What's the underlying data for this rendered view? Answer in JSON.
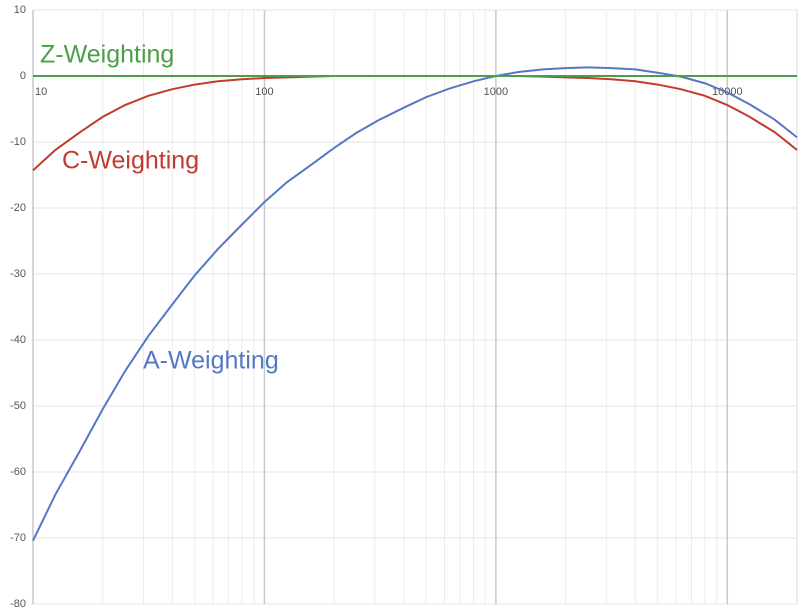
{
  "chart_data": {
    "type": "line",
    "x": [
      10,
      12.5,
      16,
      20,
      25,
      31.5,
      40,
      50,
      63,
      80,
      100,
      125,
      160,
      200,
      250,
      315,
      400,
      500,
      630,
      800,
      1000,
      1250,
      1600,
      2000,
      2500,
      3150,
      4000,
      5000,
      6300,
      8000,
      10000,
      12500,
      16000,
      20000
    ],
    "series": [
      {
        "name": "A-Weighting",
        "color": "#5577c4",
        "values": [
          -70.4,
          -63.4,
          -56.7,
          -50.5,
          -44.7,
          -39.4,
          -34.6,
          -30.2,
          -26.2,
          -22.5,
          -19.1,
          -16.1,
          -13.4,
          -10.9,
          -8.6,
          -6.6,
          -4.8,
          -3.2,
          -1.9,
          -0.8,
          0,
          0.6,
          1.0,
          1.2,
          1.3,
          1.2,
          1.0,
          0.5,
          -0.1,
          -1.1,
          -2.5,
          -4.3,
          -6.6,
          -9.3
        ]
      },
      {
        "name": "C-Weighting",
        "color": "#c23b2e",
        "values": [
          -14.3,
          -11.2,
          -8.5,
          -6.2,
          -4.4,
          -3.0,
          -2.0,
          -1.3,
          -0.8,
          -0.5,
          -0.3,
          -0.2,
          -0.1,
          0,
          0,
          0,
          0,
          0,
          0,
          0,
          0,
          0,
          -0.1,
          -0.2,
          -0.3,
          -0.5,
          -0.8,
          -1.3,
          -2.0,
          -3.0,
          -4.4,
          -6.2,
          -8.5,
          -11.2
        ]
      },
      {
        "name": "Z-Weighting",
        "color": "#4c9f48",
        "values": [
          0,
          0,
          0,
          0,
          0,
          0,
          0,
          0,
          0,
          0,
          0,
          0,
          0,
          0,
          0,
          0,
          0,
          0,
          0,
          0,
          0,
          0,
          0,
          0,
          0,
          0,
          0,
          0,
          0,
          0,
          0,
          0,
          0,
          0
        ]
      }
    ],
    "xlim": [
      10,
      20000
    ],
    "xticks": [
      10,
      100,
      1000,
      10000
    ],
    "xlog": true,
    "ylim": [
      -80,
      10
    ],
    "yticks": [
      10,
      0,
      -10,
      -20,
      -30,
      -40,
      -50,
      -60,
      -70,
      -80
    ],
    "grid": true,
    "minor_grid": true
  }
}
